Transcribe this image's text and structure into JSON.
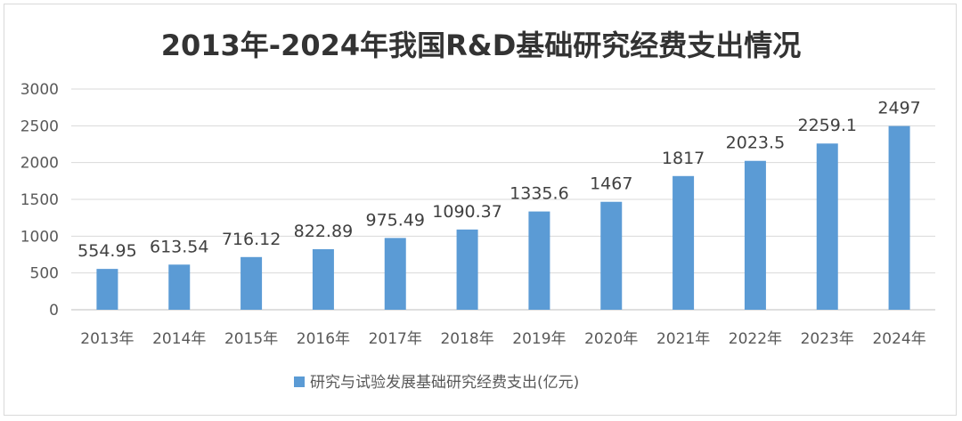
{
  "chart_data": {
    "type": "bar",
    "title": "2013年-2024年我国R&D基础研究经费支出情况",
    "categories": [
      "2013年",
      "2014年",
      "2015年",
      "2016年",
      "2017年",
      "2018年",
      "2019年",
      "2020年",
      "2021年",
      "2022年",
      "2023年",
      "2024年"
    ],
    "series": [
      {
        "name": "研究与试验发展基础研究经费支出(亿元)",
        "values": [
          554.95,
          613.54,
          716.12,
          822.89,
          975.49,
          1090.37,
          1335.6,
          1467,
          1817,
          2023.5,
          2259.1,
          2497
        ],
        "labels": [
          "554.95",
          "613.54",
          "716.12",
          "822.89",
          "975.49",
          "1090.37",
          "1335.6",
          "1467",
          "1817",
          "2023.5",
          "2259.1",
          "2497"
        ],
        "color": "#5b9bd5"
      }
    ],
    "ylim": [
      0,
      3000
    ],
    "yticks": [
      "0",
      "500",
      "1000",
      "1500",
      "2000",
      "2500",
      "3000"
    ],
    "grid": true,
    "legend": "bottom-center"
  }
}
